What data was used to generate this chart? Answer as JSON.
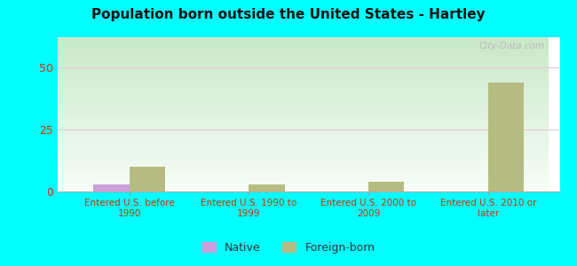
{
  "title": "Population born outside the United States - Hartley",
  "categories": [
    "Entered U.S. before\n1990",
    "Entered U.S. 1990 to\n1999",
    "Entered U.S. 2000 to\n2009",
    "Entered U.S. 2010 or\nlater"
  ],
  "native_values": [
    3,
    0,
    0,
    0
  ],
  "foreign_values": [
    10,
    3,
    4,
    44
  ],
  "native_color": "#c9a0dc",
  "foreign_color": "#b5bc82",
  "ylim": [
    0,
    62
  ],
  "yticks": [
    0,
    25,
    50
  ],
  "background_color": "#00ffff",
  "plot_bg_top": "#f8fdf8",
  "plot_bg_bottom": "#c8e8c8",
  "grid_color": "#e8c8d8",
  "title_color": "#111111",
  "tick_label_color": "#cc3300",
  "watermark": "City-Data.com",
  "legend_native": "Native",
  "legend_foreign": "Foreign-born",
  "bar_width": 0.3
}
